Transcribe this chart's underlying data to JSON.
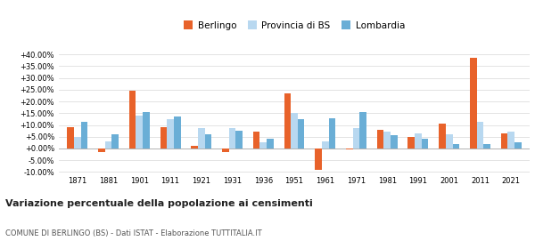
{
  "years": [
    1871,
    1881,
    1901,
    1911,
    1921,
    1931,
    1936,
    1951,
    1961,
    1971,
    1981,
    1991,
    2001,
    2011,
    2021
  ],
  "berlingo": [
    9.0,
    -1.5,
    24.5,
    9.0,
    1.0,
    -1.5,
    7.0,
    23.5,
    -9.0,
    -0.5,
    8.0,
    5.0,
    10.5,
    38.5,
    6.5
  ],
  "provincia_bs": [
    5.0,
    3.0,
    14.0,
    12.5,
    8.5,
    8.5,
    2.5,
    15.0,
    3.0,
    8.5,
    7.0,
    6.5,
    6.0,
    11.5,
    7.0
  ],
  "lombardia": [
    11.5,
    6.0,
    15.5,
    13.5,
    6.0,
    7.5,
    4.0,
    12.5,
    13.0,
    15.5,
    5.5,
    4.0,
    2.0,
    2.0,
    2.5
  ],
  "color_berlingo": "#e8622a",
  "color_provincia": "#b8d8f0",
  "color_lombardia": "#6aaed6",
  "title_main": "Variazione percentuale della popolazione ai censimenti",
  "title_sub": "COMUNE DI BERLINGO (BS) - Dati ISTAT - Elaborazione TUTTITALIA.IT",
  "legend_labels": [
    "Berlingo",
    "Provincia di BS",
    "Lombardia"
  ],
  "ylim": [
    -11,
    42
  ],
  "yticks": [
    -10,
    -5,
    0,
    5,
    10,
    15,
    20,
    25,
    30,
    35,
    40
  ],
  "bg_color": "#ffffff",
  "grid_color": "#d8d8d8"
}
